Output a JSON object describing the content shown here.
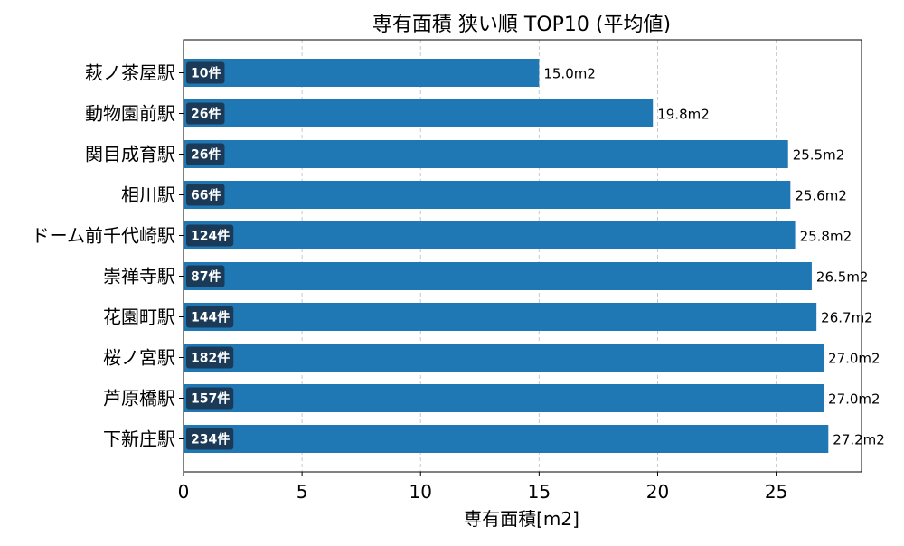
{
  "chart_data": {
    "type": "bar",
    "orientation": "horizontal",
    "title": "専有面積 狭い順 TOP10 (平均値)",
    "xlabel": "専有面積[m2]",
    "ylabel": "",
    "xlim": [
      0,
      28.6
    ],
    "x_ticks": [
      0,
      5,
      10,
      15,
      20,
      25
    ],
    "grid": "vertical dashed",
    "bar_color": "#1f77b4",
    "badge_color": "#1b3a57",
    "categories": [
      "萩ノ茶屋駅",
      "動物園前駅",
      "関目成育駅",
      "相川駅",
      "ドーム前千代崎駅",
      "崇禅寺駅",
      "花園町駅",
      "桜ノ宮駅",
      "芦原橋駅",
      "下新庄駅"
    ],
    "values": [
      15.0,
      19.8,
      25.5,
      25.6,
      25.8,
      26.5,
      26.7,
      27.0,
      27.0,
      27.2
    ],
    "value_labels": [
      "15.0m2",
      "19.8m2",
      "25.5m2",
      "25.6m2",
      "25.8m2",
      "26.5m2",
      "26.7m2",
      "27.0m2",
      "27.0m2",
      "27.2m2"
    ],
    "counts": [
      "10件",
      "26件",
      "26件",
      "66件",
      "124件",
      "87件",
      "144件",
      "182件",
      "157件",
      "234件"
    ]
  }
}
